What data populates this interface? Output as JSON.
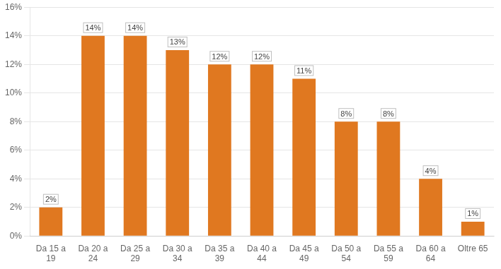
{
  "chart_data": {
    "type": "bar",
    "categories": [
      "Da 15 a\n19",
      "Da 20 a\n24",
      "Da 25 a\n29",
      "Da 30 a\n34",
      "Da 35 a\n39",
      "Da 40 a\n44",
      "Da 45 a\n49",
      "Da 50 a\n54",
      "Da 55 a\n59",
      "Da 60 a\n64",
      "Oltre 65"
    ],
    "values": [
      2,
      14,
      14,
      13,
      12,
      12,
      11,
      8,
      8,
      4,
      1
    ],
    "value_labels": [
      "2%",
      "14%",
      "14%",
      "13%",
      "12%",
      "12%",
      "11%",
      "8%",
      "8%",
      "4%",
      "1%"
    ],
    "data_labels": true,
    "color": "#E07820",
    "ylim": [
      0,
      16
    ],
    "yticks": [
      {
        "value": 0,
        "label": "0%"
      },
      {
        "value": 2,
        "label": "2%"
      },
      {
        "value": 4,
        "label": "4%"
      },
      {
        "value": 6,
        "label": "6%"
      },
      {
        "value": 8,
        "label": "8%"
      },
      {
        "value": 10,
        "label": "10%"
      },
      {
        "value": 12,
        "label": "12%"
      },
      {
        "value": 14,
        "label": "14%"
      },
      {
        "value": 16,
        "label": "16%"
      }
    ],
    "grid": true
  }
}
